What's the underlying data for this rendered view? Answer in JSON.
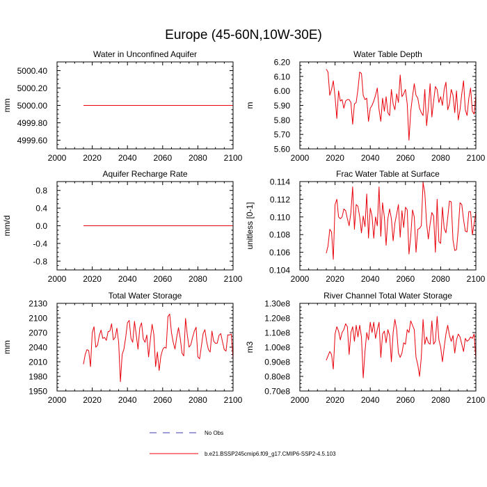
{
  "figure": {
    "title": "Europe (45-60N,10W-30E)",
    "legend": [
      {
        "label": "No Obs",
        "style": "dashed",
        "color": "#3b3bb0"
      },
      {
        "label": "b.e21.BSSP245cmip6.f09_g17.CMIP6-SSP2-4.5.103",
        "style": "solid",
        "color": "#e8000b"
      }
    ]
  },
  "chart_data": [
    {
      "type": "line",
      "title": "Water in Unconfined Aquifer",
      "xlabel": "",
      "ylabel": "mm",
      "xlim": [
        2000,
        2100
      ],
      "ylim": [
        4999.5,
        5000.5
      ],
      "xticks": [
        2000,
        2020,
        2040,
        2060,
        2080,
        2100
      ],
      "xtick_labels": [
        "2000",
        "2020",
        "2040",
        "2060",
        "2080",
        "2100"
      ],
      "yticks": [
        4999.6,
        4999.8,
        5000.0,
        5000.2,
        5000.4
      ],
      "ytick_labels": [
        "4999.60",
        "4999.80",
        "5000.00",
        "5000.20",
        "5000.40"
      ],
      "series": [
        {
          "name": "b.e21.BSSP245cmip6.f09_g17.CMIP6-SSP2-4.5.103",
          "color": "#e8000b",
          "x_start": 2015,
          "x_step": 1,
          "values": [
            5000,
            5000,
            5000,
            5000,
            5000,
            5000,
            5000,
            5000,
            5000,
            5000,
            5000,
            5000,
            5000,
            5000,
            5000,
            5000,
            5000,
            5000,
            5000,
            5000,
            5000,
            5000,
            5000,
            5000,
            5000,
            5000,
            5000,
            5000,
            5000,
            5000,
            5000,
            5000,
            5000,
            5000,
            5000,
            5000,
            5000,
            5000,
            5000,
            5000,
            5000,
            5000,
            5000,
            5000,
            5000,
            5000,
            5000,
            5000,
            5000,
            5000,
            5000,
            5000,
            5000,
            5000,
            5000,
            5000,
            5000,
            5000,
            5000,
            5000,
            5000,
            5000,
            5000,
            5000,
            5000,
            5000,
            5000,
            5000,
            5000,
            5000,
            5000,
            5000,
            5000,
            5000,
            5000,
            5000,
            5000,
            5000,
            5000,
            5000,
            5000,
            5000,
            5000,
            5000,
            5000,
            5000
          ]
        }
      ]
    },
    {
      "type": "line",
      "title": "Water Table Depth",
      "xlabel": "",
      "ylabel": "m",
      "xlim": [
        2000,
        2100
      ],
      "ylim": [
        5.6,
        6.2
      ],
      "xticks": [
        2000,
        2020,
        2040,
        2060,
        2080,
        2100
      ],
      "xtick_labels": [
        "2000",
        "2020",
        "2040",
        "2060",
        "2080",
        "2100"
      ],
      "yticks": [
        5.6,
        5.7,
        5.8,
        5.9,
        6.0,
        6.1,
        6.2
      ],
      "ytick_labels": [
        "5.60",
        "5.70",
        "5.80",
        "5.90",
        "6.00",
        "6.10",
        "6.20"
      ],
      "series": [
        {
          "name": "b.e21.BSSP245cmip6.f09_g17.CMIP6-SSP2-4.5.103",
          "color": "#e8000b",
          "x_start": 2015,
          "x_step": 1,
          "values": [
            6.15,
            6.13,
            5.97,
            6.01,
            6.07,
            5.96,
            5.81,
            6.0,
            5.93,
            5.94,
            5.88,
            5.93,
            5.94,
            5.94,
            5.92,
            5.77,
            5.91,
            5.92,
            6.01,
            6.13,
            6.12,
            5.97,
            5.94,
            5.95,
            5.79,
            5.88,
            5.9,
            5.93,
            5.97,
            6.02,
            5.87,
            5.79,
            5.95,
            5.86,
            5.96,
            5.85,
            5.83,
            6.01,
            5.91,
            5.87,
            5.98,
            5.92,
            6.11,
            5.96,
            5.98,
            6.01,
            5.91,
            5.66,
            5.86,
            5.96,
            6.05,
            5.97,
            5.95,
            5.88,
            5.85,
            5.83,
            6.01,
            5.76,
            5.88,
            6.05,
            5.82,
            5.93,
            6.03,
            6.01,
            5.92,
            5.96,
            5.9,
            6.01,
            6.06,
            5.87,
            5.91,
            6.01,
            5.97,
            5.85,
            6.0,
            5.8,
            5.87,
            5.98,
            6.07,
            5.87,
            5.83,
            5.95,
            6.02,
            5.86,
            5.84,
            5.97
          ]
        }
      ]
    },
    {
      "type": "line",
      "title": "Aquifer Recharge Rate",
      "xlabel": "",
      "ylabel": "mm/d",
      "xlim": [
        2000,
        2100
      ],
      "ylim": [
        -1.0,
        1.0
      ],
      "xticks": [
        2000,
        2020,
        2040,
        2060,
        2080,
        2100
      ],
      "xtick_labels": [
        "2000",
        "2020",
        "2040",
        "2060",
        "2080",
        "2100"
      ],
      "yticks": [
        -0.8,
        -0.4,
        0.0,
        0.4,
        0.8
      ],
      "ytick_labels": [
        "-0.8",
        "-0.4",
        "0.0",
        "0.4",
        "0.8"
      ],
      "series": [
        {
          "name": "b.e21.BSSP245cmip6.f09_g17.CMIP6-SSP2-4.5.103",
          "color": "#e8000b",
          "x_start": 2015,
          "x_step": 1,
          "values": [
            0,
            0,
            0,
            0,
            0,
            0,
            0,
            0,
            0,
            0,
            0,
            0,
            0,
            0,
            0,
            0,
            0,
            0,
            0,
            0,
            0,
            0,
            0,
            0,
            0,
            0,
            0,
            0,
            0,
            0,
            0,
            0,
            0,
            0,
            0,
            0,
            0,
            0,
            0,
            0,
            0,
            0,
            0,
            0,
            0,
            0,
            0,
            0,
            0,
            0,
            0,
            0,
            0,
            0,
            0,
            0,
            0,
            0,
            0,
            0,
            0,
            0,
            0,
            0,
            0,
            0,
            0,
            0,
            0,
            0,
            0,
            0,
            0,
            0,
            0,
            0,
            0,
            0,
            0,
            0,
            0,
            0,
            0,
            0,
            0,
            0
          ]
        }
      ]
    },
    {
      "type": "line",
      "title": "Frac Water Table at Surface",
      "xlabel": "",
      "ylabel": "unitless [0-1]",
      "xlim": [
        2000,
        2100
      ],
      "ylim": [
        0.104,
        0.114
      ],
      "xticks": [
        2000,
        2020,
        2040,
        2060,
        2080,
        2100
      ],
      "xtick_labels": [
        "2000",
        "2020",
        "2040",
        "2060",
        "2080",
        "2100"
      ],
      "yticks": [
        0.104,
        0.106,
        0.108,
        0.11,
        0.112,
        0.114
      ],
      "ytick_labels": [
        "0.104",
        "0.106",
        "0.108",
        "0.110",
        "0.112",
        "0.114"
      ],
      "series": [
        {
          "name": "b.e21.BSSP245cmip6.f09_g17.CMIP6-SSP2-4.5.103",
          "color": "#e8000b",
          "x_start": 2015,
          "x_step": 1,
          "values": [
            0.1059,
            0.1067,
            0.1086,
            0.1083,
            0.1052,
            0.1114,
            0.112,
            0.11,
            0.1098,
            0.11,
            0.1109,
            0.1107,
            0.1098,
            0.109,
            0.1105,
            0.1134,
            0.1086,
            0.1114,
            0.1112,
            0.11,
            0.1082,
            0.1101,
            0.1089,
            0.1126,
            0.1076,
            0.111,
            0.1101,
            0.1076,
            0.11,
            0.109,
            0.1134,
            0.1078,
            0.1116,
            0.11,
            0.1068,
            0.1098,
            0.1109,
            0.1098,
            0.1073,
            0.1093,
            0.1103,
            0.1114,
            0.1077,
            0.1107,
            0.1088,
            0.1111,
            0.1108,
            0.1058,
            0.1078,
            0.1108,
            0.11,
            0.106,
            0.1086,
            0.1087,
            0.109,
            0.1139,
            0.1127,
            0.1093,
            0.1075,
            0.1092,
            0.1105,
            0.1101,
            0.106,
            0.112,
            0.1072,
            0.107,
            0.1111,
            0.1087,
            0.1082,
            0.1099,
            0.1118,
            0.1117,
            0.1074,
            0.1062,
            0.1063,
            0.1086,
            0.1116,
            0.1114,
            0.1097,
            0.1084,
            0.1083,
            0.1106,
            0.1106,
            0.108,
            0.1092,
            0.1105
          ]
        }
      ]
    },
    {
      "type": "line",
      "title": "Total Water Storage",
      "xlabel": "",
      "ylabel": "mm",
      "xlim": [
        2000,
        2100
      ],
      "ylim": [
        1950,
        2130
      ],
      "xticks": [
        2000,
        2020,
        2040,
        2060,
        2080,
        2100
      ],
      "xtick_labels": [
        "2000",
        "2020",
        "2040",
        "2060",
        "2080",
        "2100"
      ],
      "yticks": [
        1950,
        1980,
        2010,
        2040,
        2070,
        2100,
        2130
      ],
      "ytick_labels": [
        "1950",
        "1980",
        "2010",
        "2040",
        "2070",
        "2100",
        "2130"
      ],
      "series": [
        {
          "name": "b.e21.BSSP245cmip6.f09_g17.CMIP6-SSP2-4.5.103",
          "color": "#e8000b",
          "x_start": 2015,
          "x_step": 1,
          "values": [
            2005,
            2025,
            2035,
            2033,
            2000,
            2070,
            2082,
            2040,
            2044,
            2064,
            2075,
            2058,
            2060,
            2054,
            2072,
            2073,
            2088,
            2055,
            2060,
            2079,
            2050,
            1969,
            2025,
            2036,
            2060,
            2090,
            2095,
            2058,
            2050,
            2093,
            2065,
            2036,
            2080,
            2090,
            2057,
            2050,
            2065,
            2020,
            2055,
            2087,
            2066,
            2000,
            2030,
            1992,
            2022,
            2035,
            2040,
            2038,
            2103,
            2108,
            2070,
            2050,
            2036,
            2061,
            2080,
            2058,
            2028,
            2022,
            2099,
            2065,
            2040,
            2045,
            2060,
            2073,
            2081,
            2020,
            2016,
            2042,
            2068,
            2076,
            2051,
            2035,
            2030,
            2073,
            2052,
            2048,
            2048,
            2064,
            2068,
            2051,
            2035,
            2032,
            2065,
            2065,
            2067,
            2016
          ]
        }
      ]
    },
    {
      "type": "line",
      "title": "River Channel Total Water Storage",
      "xlabel": "",
      "ylabel": "m3",
      "xlim": [
        2000,
        2100
      ],
      "ylim": [
        70000000.0,
        130000000.0
      ],
      "xticks": [
        2000,
        2020,
        2040,
        2060,
        2080,
        2100
      ],
      "xtick_labels": [
        "2000",
        "2020",
        "2040",
        "2060",
        "2080",
        "2100"
      ],
      "yticks": [
        70000000.0,
        80000000.0,
        90000000.0,
        100000000.0,
        110000000.0,
        120000000.0,
        130000000.0
      ],
      "ytick_labels": [
        "0.70e8",
        "0.80e8",
        "0.90e8",
        "1.00e8",
        "1.10e8",
        "1.20e8",
        "1.30e8"
      ],
      "series": [
        {
          "name": "b.e21.BSSP245cmip6.f09_g17.CMIP6-SSP2-4.5.103",
          "color": "#e8000b",
          "x_start": 2015,
          "x_step": 1,
          "values": [
            91000000.0,
            94000000.0,
            97000000.0,
            95000000.0,
            85000000.0,
            109000000.0,
            114000000.0,
            111000000.0,
            105000000.0,
            110000000.0,
            112000000.0,
            116000000.0,
            114000000.0,
            95000000.0,
            110000000.0,
            114000000.0,
            104000000.0,
            115000000.0,
            107000000.0,
            115000000.0,
            107000000.0,
            79000000.0,
            97000000.0,
            110000000.0,
            105000000.0,
            117000000.0,
            110000000.0,
            117000000.0,
            106000000.0,
            112000000.0,
            117000000.0,
            93000000.0,
            109000000.0,
            111000000.0,
            103000000.0,
            112000000.0,
            108000000.0,
            90000000.0,
            110000000.0,
            119000000.0,
            112000000.0,
            96000000.0,
            93000000.0,
            96000000.0,
            103000000.0,
            102000000.0,
            112000000.0,
            110000000.0,
            118000000.0,
            115000000.0,
            112000000.0,
            93000000.0,
            88000000.0,
            80000000.0,
            93000000.0,
            119000000.0,
            102000000.0,
            107000000.0,
            103000000.0,
            102000000.0,
            118000000.0,
            102000000.0,
            104000000.0,
            121000000.0,
            105000000.0,
            100000000.0,
            90000000.0,
            100000000.0,
            109000000.0,
            115000000.0,
            108000000.0,
            104000000.0,
            108000000.0,
            96000000.0,
            105000000.0,
            109000000.0,
            107000000.0,
            102000000.0,
            97000000.0,
            106000000.0,
            104000000.0,
            105000000.0,
            107000000.0,
            106000000.0,
            109000000.0,
            92000000.0
          ]
        }
      ]
    }
  ]
}
